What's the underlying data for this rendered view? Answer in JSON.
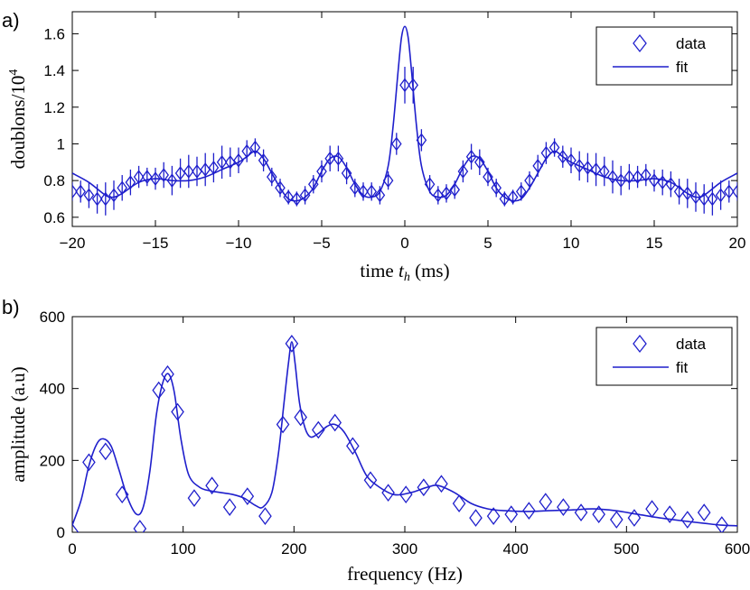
{
  "chart_data": [
    {
      "panel_label": "a)",
      "type": "scatter",
      "xlabel_prefix": "time ",
      "xlabel_var": "t",
      "xlabel_sub": "h",
      "xlabel_suffix": " (ms)",
      "ylabel_main": "doublons/10",
      "ylabel_sup": "4",
      "xlim": [
        -20,
        20
      ],
      "ylim": [
        0.55,
        1.72
      ],
      "xticks": [
        -20,
        -15,
        -10,
        -5,
        0,
        5,
        10,
        15,
        20
      ],
      "xtick_labels": [
        "−20",
        "−15",
        "−10",
        "−5",
        "0",
        "5",
        "10",
        "15",
        "20"
      ],
      "yticks": [
        0.6,
        0.8,
        1.0,
        1.2,
        1.4,
        1.6
      ],
      "ytick_labels": [
        "0.6",
        "0.8",
        "1",
        "1.2",
        "1.4",
        "1.6"
      ],
      "legend": {
        "position": "top-right",
        "data_label": "data",
        "fit_label": "fit"
      },
      "color": "#1f1fcc",
      "series": [
        {
          "name": "data",
          "x": [
            -20,
            -19.5,
            -19,
            -18.5,
            -18,
            -17.5,
            -17,
            -16.5,
            -16,
            -15.5,
            -15,
            -14.5,
            -14,
            -13.5,
            -13,
            -12.5,
            -12,
            -11.5,
            -11,
            -10.5,
            -10,
            -9.5,
            -9,
            -8.5,
            -8,
            -7.5,
            -7,
            -6.5,
            -6,
            -5.5,
            -5,
            -4.5,
            -4,
            -3.5,
            -3,
            -2.5,
            -2,
            -1.5,
            -1,
            -0.5,
            0,
            0.5,
            1,
            1.5,
            2,
            2.5,
            3,
            3.5,
            4,
            4.5,
            5,
            5.5,
            6,
            6.5,
            7,
            7.5,
            8,
            8.5,
            9,
            9.5,
            10,
            10.5,
            11,
            11.5,
            12,
            12.5,
            13,
            13.5,
            14,
            14.5,
            15,
            15.5,
            16,
            16.5,
            17,
            17.5,
            18,
            18.5,
            19,
            19.5,
            20
          ],
          "y": [
            0.74,
            0.74,
            0.72,
            0.7,
            0.7,
            0.72,
            0.76,
            0.79,
            0.82,
            0.82,
            0.81,
            0.83,
            0.8,
            0.84,
            0.85,
            0.85,
            0.86,
            0.87,
            0.9,
            0.9,
            0.91,
            0.96,
            0.98,
            0.91,
            0.82,
            0.76,
            0.71,
            0.7,
            0.72,
            0.78,
            0.85,
            0.92,
            0.92,
            0.84,
            0.76,
            0.74,
            0.74,
            0.72,
            0.8,
            1.0,
            1.32,
            1.32,
            1.02,
            0.78,
            0.72,
            0.73,
            0.75,
            0.85,
            0.93,
            0.9,
            0.82,
            0.76,
            0.7,
            0.71,
            0.74,
            0.8,
            0.88,
            0.95,
            0.98,
            0.93,
            0.91,
            0.88,
            0.87,
            0.86,
            0.85,
            0.82,
            0.8,
            0.82,
            0.82,
            0.83,
            0.8,
            0.79,
            0.78,
            0.74,
            0.73,
            0.71,
            0.7,
            0.7,
            0.72,
            0.74,
            0.74
          ],
          "err": [
            0.05,
            0.06,
            0.07,
            0.08,
            0.09,
            0.08,
            0.07,
            0.07,
            0.06,
            0.05,
            0.06,
            0.07,
            0.08,
            0.08,
            0.09,
            0.08,
            0.09,
            0.08,
            0.09,
            0.08,
            0.07,
            0.06,
            0.05,
            0.06,
            0.05,
            0.05,
            0.04,
            0.04,
            0.05,
            0.05,
            0.06,
            0.07,
            0.07,
            0.06,
            0.05,
            0.05,
            0.05,
            0.05,
            0.05,
            0.06,
            0.1,
            0.1,
            0.06,
            0.05,
            0.05,
            0.05,
            0.05,
            0.06,
            0.07,
            0.07,
            0.05,
            0.05,
            0.04,
            0.04,
            0.05,
            0.05,
            0.06,
            0.06,
            0.05,
            0.06,
            0.07,
            0.08,
            0.08,
            0.09,
            0.08,
            0.09,
            0.08,
            0.07,
            0.06,
            0.06,
            0.06,
            0.07,
            0.07,
            0.07,
            0.08,
            0.08,
            0.08,
            0.09,
            0.08,
            0.06,
            0.05
          ]
        },
        {
          "name": "fit",
          "x": [
            -20,
            -19,
            -18,
            -17.5,
            -17,
            -16,
            -15,
            -14,
            -13,
            -12,
            -11,
            -10,
            -9.5,
            -9,
            -8.5,
            -8,
            -7.5,
            -7,
            -6.5,
            -6,
            -5.5,
            -5,
            -4.5,
            -4,
            -3.5,
            -3,
            -2.5,
            -2,
            -1.5,
            -1,
            -0.7,
            -0.4,
            -0.2,
            0,
            0.2,
            0.4,
            0.7,
            1,
            1.5,
            2,
            2.5,
            3,
            3.5,
            4,
            4.5,
            5,
            5.5,
            6,
            6.5,
            7,
            7.5,
            8,
            8.5,
            9,
            9.5,
            10,
            11,
            12,
            13,
            14,
            15,
            16,
            17,
            17.5,
            18,
            19,
            20
          ],
          "y": [
            0.84,
            0.79,
            0.72,
            0.71,
            0.73,
            0.79,
            0.81,
            0.8,
            0.8,
            0.82,
            0.86,
            0.9,
            0.93,
            0.96,
            0.92,
            0.84,
            0.76,
            0.7,
            0.69,
            0.71,
            0.76,
            0.85,
            0.92,
            0.93,
            0.87,
            0.78,
            0.72,
            0.71,
            0.74,
            0.88,
            1.1,
            1.4,
            1.58,
            1.64,
            1.58,
            1.4,
            1.1,
            0.88,
            0.74,
            0.71,
            0.72,
            0.78,
            0.87,
            0.93,
            0.92,
            0.85,
            0.76,
            0.71,
            0.69,
            0.7,
            0.76,
            0.84,
            0.92,
            0.96,
            0.93,
            0.9,
            0.86,
            0.82,
            0.8,
            0.8,
            0.81,
            0.79,
            0.73,
            0.71,
            0.72,
            0.79,
            0.84
          ]
        }
      ]
    },
    {
      "panel_label": "b)",
      "type": "scatter",
      "xlabel": "frequency (Hz)",
      "ylabel": "amplitude (a.u)",
      "xlim": [
        0,
        600
      ],
      "ylim": [
        0,
        600
      ],
      "xticks": [
        0,
        100,
        200,
        300,
        400,
        500,
        600
      ],
      "xtick_labels": [
        "0",
        "100",
        "200",
        "300",
        "400",
        "500",
        "600"
      ],
      "yticks": [
        0,
        200,
        400,
        600
      ],
      "ytick_labels": [
        "0",
        "200",
        "400",
        "600"
      ],
      "legend": {
        "position": "top-right",
        "data_label": "data",
        "fit_label": "fit"
      },
      "color": "#1f1fcc",
      "series": [
        {
          "name": "data",
          "x": [
            0,
            15,
            30,
            45,
            61,
            78,
            86,
            95,
            110,
            126,
            142,
            158,
            174,
            190,
            198,
            206,
            222,
            237,
            253,
            269,
            285,
            301,
            317,
            333,
            349,
            364,
            380,
            396,
            412,
            427,
            443,
            459,
            475,
            491,
            507,
            523,
            539,
            555,
            570,
            586
          ],
          "y": [
            0,
            195,
            225,
            105,
            10,
            395,
            440,
            335,
            95,
            130,
            70,
            100,
            45,
            300,
            525,
            320,
            285,
            305,
            240,
            145,
            110,
            105,
            125,
            135,
            80,
            40,
            45,
            50,
            60,
            85,
            70,
            55,
            50,
            35,
            40,
            65,
            50,
            35,
            55,
            20
          ]
        },
        {
          "name": "fit",
          "x": [
            0,
            8,
            15,
            22,
            28,
            35,
            42,
            50,
            58,
            64,
            70,
            76,
            82,
            87,
            92,
            98,
            105,
            115,
            125,
            135,
            145,
            155,
            165,
            172,
            180,
            186,
            191,
            195,
            198,
            201,
            205,
            210,
            215,
            222,
            230,
            237,
            245,
            255,
            265,
            275,
            290,
            305,
            320,
            330,
            345,
            360,
            375,
            390,
            410,
            430,
            450,
            470,
            490,
            510,
            530,
            550,
            570,
            585,
            600
          ],
          "y": [
            20,
            90,
            185,
            245,
            260,
            240,
            175,
            95,
            50,
            70,
            170,
            330,
            420,
            440,
            390,
            260,
            160,
            125,
            115,
            110,
            105,
            95,
            75,
            70,
            110,
            220,
            360,
            470,
            530,
            470,
            360,
            290,
            265,
            275,
            295,
            300,
            280,
            225,
            160,
            130,
            105,
            110,
            125,
            130,
            110,
            80,
            65,
            60,
            58,
            60,
            62,
            65,
            60,
            50,
            40,
            32,
            25,
            20,
            18
          ]
        }
      ]
    }
  ]
}
